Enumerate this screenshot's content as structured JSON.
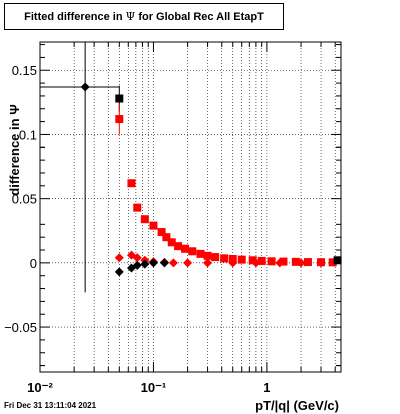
{
  "title": {
    "pre": "Fitted difference in ",
    "symbol": "Ψ",
    "post": " for Global Rec All EtapT"
  },
  "timestamp": "Fri Dec 31 13:11:04 2021",
  "chart_data": {
    "type": "scatter",
    "xlabel": "pT/|q| (GeV/c)",
    "ylabel": "difference in Ψ",
    "xscale": "log",
    "xlim": [
      0.01,
      4.5
    ],
    "ylim": [
      -0.085,
      0.172
    ],
    "xticks": [
      {
        "v": 0.01,
        "label": "10⁻²"
      },
      {
        "v": 0.1,
        "label": "10⁻¹"
      },
      {
        "v": 1,
        "label": "1"
      }
    ],
    "yticks": [
      {
        "v": -0.05,
        "label": "−0.05"
      },
      {
        "v": 0,
        "label": "0"
      },
      {
        "v": 0.05,
        "label": "0.05"
      },
      {
        "v": 0.1,
        "label": "0.1"
      },
      {
        "v": 0.15,
        "label": "0.15"
      }
    ],
    "grid": true,
    "series": [
      {
        "marker": "diamond",
        "color": "#000000",
        "points": [
          {
            "x": 0.025,
            "y": 0.137,
            "xerr": [
              0.01,
              0.05
            ],
            "yerr": 0.16
          }
        ]
      },
      {
        "marker": "square",
        "color": "#000000",
        "points": [
          {
            "x": 0.05,
            "y": 0.128,
            "yerr": 0.01
          }
        ]
      },
      {
        "marker": "square",
        "color": "#ff0000",
        "points": [
          {
            "x": 0.05,
            "y": 0.112,
            "yerr": 0.012
          },
          {
            "x": 0.064,
            "y": 0.062
          },
          {
            "x": 0.072,
            "y": 0.043
          },
          {
            "x": 0.084,
            "y": 0.034
          },
          {
            "x": 0.1,
            "y": 0.029
          },
          {
            "x": 0.118,
            "y": 0.024
          },
          {
            "x": 0.13,
            "y": 0.02
          },
          {
            "x": 0.145,
            "y": 0.016
          },
          {
            "x": 0.165,
            "y": 0.013
          },
          {
            "x": 0.19,
            "y": 0.011
          },
          {
            "x": 0.22,
            "y": 0.009
          },
          {
            "x": 0.26,
            "y": 0.007
          },
          {
            "x": 0.3,
            "y": 0.0055
          },
          {
            "x": 0.35,
            "y": 0.0045
          },
          {
            "x": 0.42,
            "y": 0.0035
          },
          {
            "x": 0.5,
            "y": 0.003
          },
          {
            "x": 0.6,
            "y": 0.0025
          },
          {
            "x": 0.75,
            "y": 0.002
          },
          {
            "x": 0.9,
            "y": 0.0015
          },
          {
            "x": 1.1,
            "y": 0.0012
          },
          {
            "x": 1.4,
            "y": 0.001
          },
          {
            "x": 1.8,
            "y": 0.0008
          },
          {
            "x": 2.3,
            "y": 0.0006
          },
          {
            "x": 3.0,
            "y": 0.0005
          },
          {
            "x": 3.8,
            "y": 0.0004
          }
        ]
      },
      {
        "marker": "diamond",
        "color": "#ff0000",
        "points": [
          {
            "x": 0.05,
            "y": 0.004
          },
          {
            "x": 0.064,
            "y": 0.006
          },
          {
            "x": 0.072,
            "y": 0.004
          },
          {
            "x": 0.084,
            "y": 0.002
          },
          {
            "x": 0.1,
            "y": 0.001
          },
          {
            "x": 0.125,
            "y": 0.0005
          },
          {
            "x": 0.15,
            "y": 0.0
          },
          {
            "x": 0.2,
            "y": 0.0
          },
          {
            "x": 0.3,
            "y": 0.0
          },
          {
            "x": 0.5,
            "y": 0.0
          },
          {
            "x": 0.8,
            "y": 0.0
          },
          {
            "x": 1.3,
            "y": 0.0
          },
          {
            "x": 2.0,
            "y": 0.0
          },
          {
            "x": 3.0,
            "y": 0.0
          }
        ]
      },
      {
        "marker": "diamond",
        "color": "#000000",
        "points": [
          {
            "x": 0.05,
            "y": -0.007
          },
          {
            "x": 0.064,
            "y": -0.004
          },
          {
            "x": 0.072,
            "y": -0.002
          },
          {
            "x": 0.084,
            "y": -0.001
          },
          {
            "x": 0.1,
            "y": 0.0
          },
          {
            "x": 0.125,
            "y": 0.0
          }
        ]
      },
      {
        "marker": "square",
        "color": "#000000",
        "points": [
          {
            "x": 4.2,
            "y": 0.002
          }
        ]
      }
    ]
  }
}
